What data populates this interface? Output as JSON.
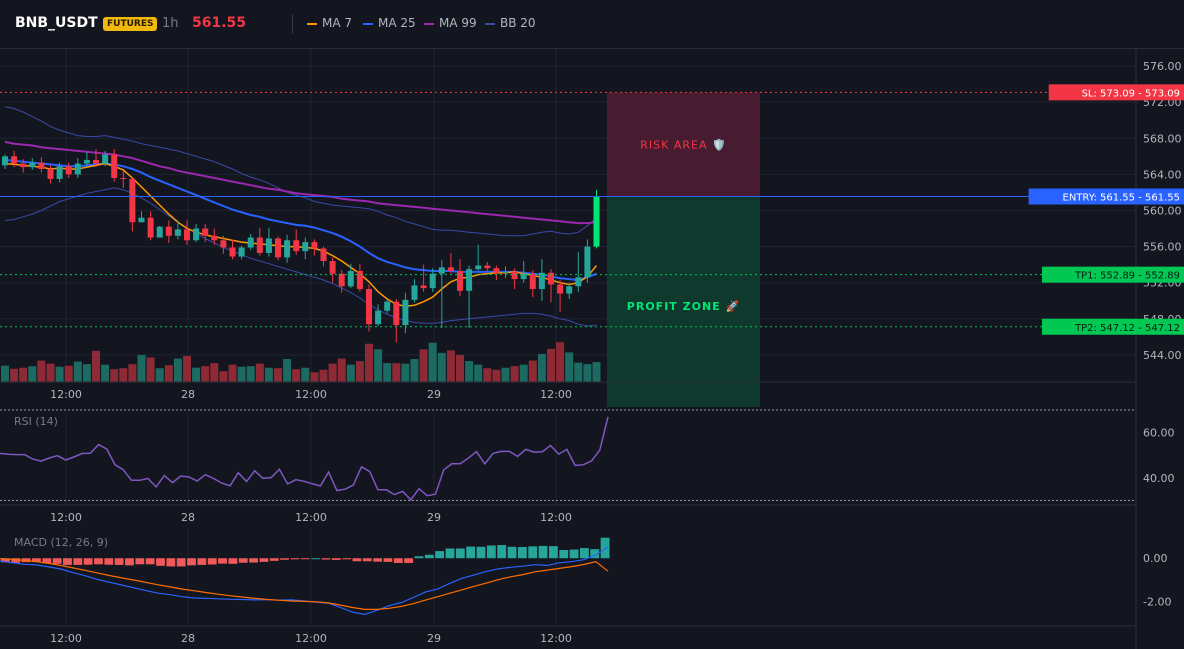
{
  "header": {
    "symbol": "BNB_USDT",
    "badge": "FUTURES",
    "timeframe": "1h",
    "price": "561.55",
    "legend": [
      {
        "label": "MA 7",
        "color": "#ff9800"
      },
      {
        "label": "MA 25",
        "color": "#2962ff"
      },
      {
        "label": "MA 99",
        "color": "#9c27b0"
      },
      {
        "label": "BB 20",
        "color": "#3949ab"
      }
    ]
  },
  "colors": {
    "up": "#26a69a",
    "up_bright": "#00e676",
    "down": "#f23645",
    "entry": "#2962ff",
    "sl": "#f23645",
    "tp": "#00c853"
  },
  "trade": {
    "sl_label": "SL: 573.09 - 573.09",
    "entry_label": "ENTRY: 561.55 - 561.55",
    "tp1_label": "TP1: 552.89 - 552.89",
    "tp2_label": "TP2: 547.12 - 547.12",
    "risk_label": "RISK AREA 🛡️",
    "profit_label": "PROFIT ZONE 🚀"
  },
  "chart_data": [
    {
      "type": "candlestick",
      "ylim": [
        541,
        578
      ],
      "y_ticks": [
        "576.00",
        "572.00",
        "568.00",
        "564.00",
        "560.00",
        "556.00",
        "552.00",
        "548.00",
        "544.00"
      ],
      "x_ticks": [
        "12:00",
        "28",
        "12:00",
        "29",
        "12:00"
      ],
      "candles": [
        [
          565.0,
          566.0,
          566.2,
          564.6
        ],
        [
          566.0,
          565.2,
          566.6,
          564.8
        ],
        [
          565.2,
          564.8,
          565.7,
          564.2
        ],
        [
          564.8,
          565.3,
          565.8,
          564.5
        ],
        [
          565.3,
          564.6,
          565.9,
          564.2
        ],
        [
          564.6,
          563.5,
          565.0,
          563.0
        ],
        [
          563.5,
          564.9,
          565.3,
          563.1
        ],
        [
          564.9,
          564.0,
          565.3,
          563.6
        ],
        [
          564.0,
          565.2,
          565.8,
          563.6
        ],
        [
          565.2,
          565.6,
          566.5,
          564.9
        ],
        [
          565.6,
          565.2,
          566.8,
          564.8
        ],
        [
          565.2,
          566.2,
          566.6,
          564.9
        ],
        [
          566.2,
          563.6,
          566.8,
          563.2
        ],
        [
          563.6,
          563.5,
          564.4,
          562.5
        ],
        [
          563.5,
          558.7,
          563.6,
          557.7
        ],
        [
          558.7,
          559.2,
          559.9,
          558.7
        ],
        [
          559.2,
          557.0,
          559.9,
          556.7
        ],
        [
          557.0,
          558.2,
          558.3,
          557.0
        ],
        [
          558.2,
          557.2,
          558.9,
          556.4
        ],
        [
          557.2,
          557.9,
          558.9,
          556.8
        ],
        [
          557.9,
          556.7,
          558.9,
          556.2
        ],
        [
          556.7,
          558.0,
          558.5,
          556.5
        ],
        [
          558.0,
          557.2,
          558.5,
          556.5
        ],
        [
          557.2,
          556.7,
          558.0,
          556.2
        ],
        [
          556.7,
          555.9,
          557.2,
          555.2
        ],
        [
          555.9,
          554.9,
          556.8,
          554.6
        ],
        [
          554.9,
          555.9,
          556.1,
          554.6
        ],
        [
          555.9,
          557.0,
          557.4,
          555.6
        ],
        [
          557.0,
          555.3,
          558.1,
          555.0
        ],
        [
          555.3,
          556.9,
          558.1,
          554.9
        ],
        [
          556.9,
          554.8,
          557.1,
          554.5
        ],
        [
          554.8,
          556.7,
          557.3,
          554.2
        ],
        [
          556.7,
          555.5,
          557.9,
          555.1
        ],
        [
          555.5,
          556.5,
          557.0,
          554.6
        ],
        [
          556.5,
          555.8,
          556.8,
          555.0
        ],
        [
          555.8,
          554.4,
          556.0,
          553.8
        ],
        [
          554.4,
          553.0,
          554.8,
          552.0
        ],
        [
          553.0,
          551.6,
          553.4,
          550.9
        ],
        [
          551.6,
          553.3,
          554.1,
          551.4
        ],
        [
          553.3,
          551.3,
          554.1,
          551.0
        ],
        [
          551.3,
          547.4,
          551.8,
          546.6
        ],
        [
          547.4,
          548.9,
          549.6,
          547.2
        ],
        [
          548.9,
          549.9,
          550.2,
          548.6
        ],
        [
          549.9,
          547.3,
          550.2,
          545.4
        ],
        [
          547.3,
          550.1,
          550.9,
          546.4
        ],
        [
          550.1,
          551.7,
          552.4,
          549.8
        ],
        [
          551.7,
          551.4,
          554.0,
          551.0
        ],
        [
          551.4,
          553.0,
          553.6,
          551.0
        ],
        [
          553.0,
          553.7,
          554.5,
          547.0
        ],
        [
          553.7,
          553.3,
          555.3,
          553.0
        ],
        [
          553.3,
          551.1,
          554.6,
          550.5
        ],
        [
          551.1,
          553.5,
          553.9,
          547.0
        ],
        [
          553.5,
          553.9,
          556.2,
          553.3
        ],
        [
          553.9,
          553.6,
          554.3,
          553.3
        ],
        [
          553.6,
          553.1,
          553.9,
          552.3
        ],
        [
          553.1,
          553.2,
          553.8,
          552.5
        ],
        [
          553.2,
          552.4,
          553.6,
          551.3
        ],
        [
          552.4,
          553.0,
          554.4,
          552.0
        ],
        [
          553.0,
          551.3,
          553.4,
          550.4
        ],
        [
          551.3,
          553.1,
          554.6,
          550.0
        ],
        [
          553.1,
          551.8,
          553.5,
          549.8
        ],
        [
          551.8,
          550.8,
          552.3,
          548.8
        ],
        [
          550.8,
          551.6,
          552.0,
          550.2
        ],
        [
          551.6,
          552.6,
          555.4,
          551.0
        ],
        [
          552.6,
          556.0,
          556.8,
          552.0
        ],
        [
          556.0,
          561.6,
          562.3,
          555.8
        ]
      ],
      "volumes": [
        3.2,
        2.6,
        2.8,
        3.1,
        4.2,
        3.6,
        3.0,
        3.2,
        4.0,
        3.5,
        6.1,
        3.4,
        2.5,
        2.7,
        3.5,
        5.3,
        4.8,
        2.7,
        3.3,
        4.6,
        5.1,
        2.8,
        3.1,
        3.7,
        2.1,
        3.4,
        3.0,
        3.1,
        3.6,
        2.8,
        2.7,
        4.5,
        2.5,
        2.8,
        1.9,
        2.4,
        3.6,
        4.6,
        3.4,
        4.1,
        7.5,
        6.4,
        3.7,
        3.7,
        3.6,
        4.5,
        6.4,
        7.7,
        5.7,
        6.2,
        5.3,
        4.1,
        3.4,
        2.7,
        2.4,
        2.8,
        3.1,
        3.4,
        4.2,
        5.5,
        6.5,
        7.8,
        5.8,
        3.8,
        3.5,
        3.9
      ],
      "ma7": [
        565.2,
        565.1,
        565.0,
        564.9,
        564.8,
        564.6,
        564.7,
        564.6,
        564.6,
        564.8,
        565.0,
        565.2,
        564.9,
        564.5,
        563.6,
        562.6,
        561.6,
        560.6,
        559.6,
        558.7,
        558.0,
        557.6,
        557.3,
        557.1,
        556.9,
        556.7,
        556.5,
        556.4,
        556.3,
        556.2,
        556.1,
        556.0,
        556.0,
        555.9,
        555.8,
        555.5,
        555.0,
        554.4,
        553.7,
        553.0,
        552.1,
        551.0,
        550.2,
        549.6,
        549.4,
        549.5,
        549.9,
        550.4,
        551.3,
        552.1,
        552.5,
        552.6,
        552.9,
        553.0,
        553.1,
        553.1,
        553.2,
        553.0,
        552.8,
        552.6,
        552.3,
        552.0,
        551.8,
        552.0,
        552.7,
        553.9
      ],
      "ma25": [
        565.6,
        565.5,
        565.4,
        565.3,
        565.2,
        565.1,
        565.0,
        564.9,
        564.9,
        565.0,
        565.1,
        565.2,
        565.1,
        564.9,
        564.6,
        564.2,
        563.7,
        563.3,
        562.9,
        562.5,
        562.1,
        561.7,
        561.3,
        560.9,
        560.5,
        560.1,
        559.8,
        559.5,
        559.3,
        559.0,
        558.8,
        558.6,
        558.4,
        558.3,
        558.1,
        557.8,
        557.5,
        557.1,
        556.6,
        556.0,
        555.3,
        554.7,
        554.3,
        554.0,
        553.7,
        553.5,
        553.4,
        553.3,
        553.3,
        553.3,
        553.2,
        553.2,
        553.2,
        553.2,
        553.2,
        553.2,
        553.2,
        553.1,
        553.0,
        552.9,
        552.7,
        552.5,
        552.4,
        552.3,
        552.6,
        553.0
      ],
      "ma99": [
        567.6,
        567.4,
        567.3,
        567.2,
        567.0,
        566.9,
        566.8,
        566.7,
        566.6,
        566.5,
        566.4,
        566.3,
        566.2,
        566.0,
        565.8,
        565.5,
        565.2,
        564.9,
        564.7,
        564.4,
        564.2,
        564.0,
        563.8,
        563.6,
        563.4,
        563.2,
        563.0,
        562.8,
        562.6,
        562.4,
        562.3,
        562.1,
        561.9,
        561.8,
        561.7,
        561.6,
        561.5,
        561.3,
        561.2,
        561.1,
        561.0,
        560.8,
        560.7,
        560.6,
        560.5,
        560.4,
        560.3,
        560.2,
        560.1,
        560.0,
        559.9,
        559.8,
        559.7,
        559.6,
        559.5,
        559.4,
        559.3,
        559.2,
        559.1,
        559.0,
        558.9,
        558.8,
        558.7,
        558.6,
        558.6,
        558.7
      ],
      "bb_upper": [
        571.5,
        571.3,
        570.9,
        570.4,
        569.9,
        569.3,
        568.9,
        568.6,
        568.3,
        568.2,
        568.2,
        568.3,
        568.1,
        567.9,
        567.7,
        567.4,
        567.2,
        567.0,
        566.8,
        566.6,
        566.3,
        566.0,
        565.7,
        565.4,
        565.0,
        564.6,
        564.1,
        563.7,
        563.4,
        563.0,
        562.5,
        562.0,
        561.7,
        561.4,
        561.0,
        560.8,
        560.6,
        560.5,
        560.4,
        560.3,
        560.2,
        559.9,
        559.5,
        559.2,
        558.8,
        558.5,
        558.2,
        557.9,
        557.8,
        557.8,
        557.7,
        557.6,
        557.5,
        557.4,
        557.3,
        557.2,
        557.2,
        557.2,
        557.4,
        557.6,
        557.7,
        557.5,
        557.4,
        557.6,
        558.3,
        559.2
      ],
      "bb_lower": [
        558.9,
        559.0,
        559.3,
        559.6,
        560.0,
        560.5,
        561.0,
        561.3,
        561.6,
        561.9,
        562.1,
        562.3,
        562.5,
        562.3,
        561.9,
        561.4,
        560.8,
        560.1,
        559.4,
        558.7,
        558.1,
        557.5,
        556.9,
        556.4,
        555.9,
        555.5,
        555.1,
        554.7,
        554.4,
        554.1,
        553.8,
        553.5,
        553.2,
        552.9,
        552.6,
        552.3,
        551.9,
        551.4,
        550.9,
        550.3,
        549.6,
        549.0,
        548.5,
        548.1,
        547.8,
        547.6,
        547.5,
        547.5,
        547.6,
        547.8,
        547.9,
        548.0,
        548.1,
        548.2,
        548.3,
        548.4,
        548.5,
        548.6,
        548.6,
        548.5,
        548.3,
        548.0,
        547.8,
        547.4,
        547.2,
        547.3
      ]
    },
    {
      "type": "line",
      "title": "RSI (14)",
      "ylim": [
        28,
        70
      ],
      "y_ticks": [
        "60.00",
        "40.00"
      ],
      "x_ticks": [
        "12:00",
        "28",
        "12:00",
        "29",
        "12:00"
      ],
      "values": [
        50.8,
        50.4,
        50.3,
        50.3,
        48.3,
        47.4,
        48.8,
        49.8,
        47.9,
        49.2,
        50.8,
        50.9,
        54.7,
        52.7,
        45.8,
        43.6,
        38.9,
        38.9,
        39.7,
        36.0,
        41.0,
        37.9,
        40.8,
        40.4,
        38.6,
        41.4,
        39.7,
        37.7,
        36.5,
        42.3,
        38.4,
        43.1,
        39.8,
        40.1,
        43.8,
        37.3,
        39.2,
        38.5,
        37.4,
        36.4,
        42.6,
        34.4,
        35.0,
        36.8,
        44.9,
        42.8,
        34.7,
        34.7,
        32.6,
        34.0,
        30.3,
        35.2,
        32.1,
        32.8,
        43.5,
        46.3,
        46.2,
        48.7,
        51.6,
        46.2,
        50.8,
        51.7,
        51.7,
        49.5,
        52.6,
        51.4,
        51.5,
        54.3,
        50.5,
        52.6,
        45.5,
        45.8,
        47.5,
        52.3,
        67.0
      ]
    },
    {
      "type": "bar+line",
      "title": "MACD (12, 26, 9)",
      "ylim": [
        -3.0,
        1.4
      ],
      "y_ticks": [
        "0.00",
        "-2.00"
      ],
      "x_ticks": [
        "12:00",
        "28",
        "12:00",
        "29",
        "12:00"
      ],
      "histogram": [
        -0.19,
        -0.21,
        -0.18,
        -0.18,
        -0.23,
        -0.26,
        -0.31,
        -0.31,
        -0.3,
        -0.28,
        -0.3,
        -0.31,
        -0.33,
        -0.28,
        -0.28,
        -0.35,
        -0.38,
        -0.38,
        -0.33,
        -0.31,
        -0.29,
        -0.25,
        -0.26,
        -0.21,
        -0.2,
        -0.17,
        -0.12,
        -0.07,
        -0.05,
        -0.02,
        0.0,
        -0.06,
        -0.08,
        -0.05,
        -0.14,
        -0.14,
        -0.16,
        -0.17,
        -0.22,
        -0.22,
        0.09,
        0.16,
        0.33,
        0.45,
        0.45,
        0.54,
        0.53,
        0.59,
        0.61,
        0.53,
        0.52,
        0.55,
        0.57,
        0.56,
        0.38,
        0.4,
        0.47,
        0.42,
        0.95
      ],
      "macd": [
        -0.13,
        -0.21,
        -0.28,
        -0.31,
        -0.4,
        -0.5,
        -0.67,
        -0.81,
        -0.98,
        -1.11,
        -1.24,
        -1.37,
        -1.5,
        -1.62,
        -1.69,
        -1.78,
        -1.84,
        -1.86,
        -1.88,
        -1.9,
        -1.91,
        -1.93,
        -1.92,
        -1.94,
        -1.93,
        -1.98,
        -2.03,
        -2.08,
        -2.28,
        -2.5,
        -2.6,
        -2.41,
        -2.2,
        -2.05,
        -1.82,
        -1.56,
        -1.42,
        -1.16,
        -0.93,
        -0.77,
        -0.61,
        -0.49,
        -0.42,
        -0.37,
        -0.3,
        -0.33,
        -0.21,
        -0.16,
        -0.07,
        0.15,
        0.52
      ],
      "signal": [
        -0.02,
        -0.05,
        -0.1,
        -0.16,
        -0.24,
        -0.33,
        -0.45,
        -0.56,
        -0.68,
        -0.8,
        -0.91,
        -1.01,
        -1.12,
        -1.23,
        -1.33,
        -1.43,
        -1.51,
        -1.59,
        -1.67,
        -1.74,
        -1.8,
        -1.86,
        -1.91,
        -1.95,
        -1.98,
        -2.0,
        -2.02,
        -2.07,
        -2.17,
        -2.28,
        -2.37,
        -2.37,
        -2.32,
        -2.23,
        -2.1,
        -1.94,
        -1.78,
        -1.62,
        -1.46,
        -1.3,
        -1.15,
        -0.99,
        -0.86,
        -0.76,
        -0.63,
        -0.55,
        -0.47,
        -0.39,
        -0.29,
        -0.16,
        -0.6
      ]
    }
  ]
}
